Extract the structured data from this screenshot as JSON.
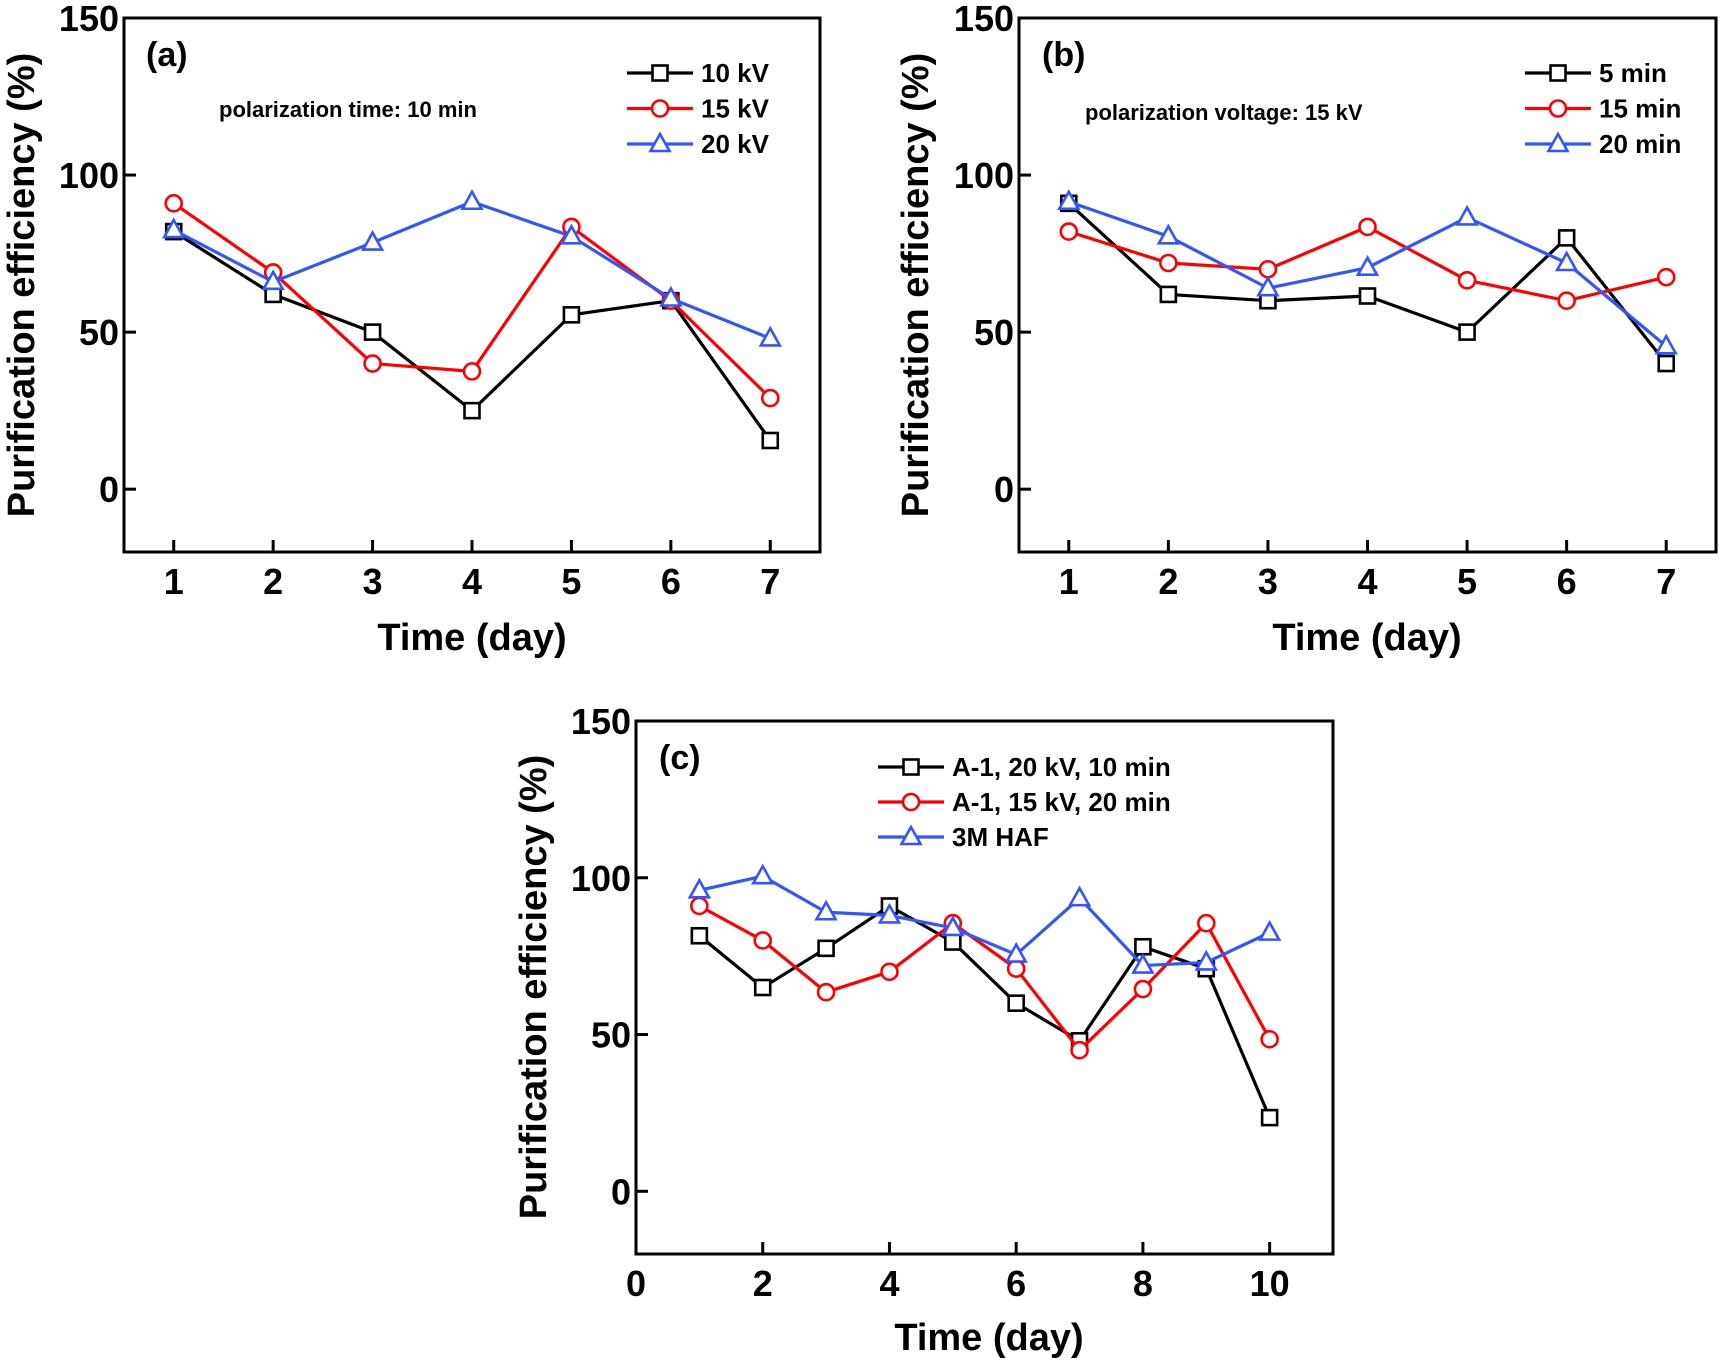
{
  "colors": {
    "black": "#000000",
    "red": "#ff0000",
    "blue": "#3355ff"
  },
  "chart_data": [
    {
      "type": "line",
      "panel_label": "(a)",
      "annotation": "polarization time: 10 min",
      "xlabel": "Time (day)",
      "ylabel": "Purification efficiency (%)",
      "xlim": [
        0.5,
        7.5
      ],
      "ylim": [
        -20,
        150
      ],
      "xticks": [
        1,
        2,
        3,
        4,
        5,
        6,
        7
      ],
      "yticks": [
        0,
        50,
        100,
        150
      ],
      "legend": "top-right",
      "grid": false,
      "x": [
        1,
        2,
        3,
        4,
        5,
        6,
        7
      ],
      "series": [
        {
          "name": "10 kV",
          "color": "#000000",
          "marker": "square",
          "values": [
            82,
            62,
            50,
            25,
            55.5,
            60,
            15.5
          ]
        },
        {
          "name": "15 kV",
          "color": "#ff0000",
          "marker": "circle",
          "values": [
            91,
            69,
            40,
            37.5,
            83.5,
            60,
            29
          ]
        },
        {
          "name": "20 kV",
          "color": "#3355ff",
          "marker": "triangle",
          "values": [
            82.5,
            66,
            78.5,
            91.5,
            80.5,
            60.7,
            48
          ]
        }
      ]
    },
    {
      "type": "line",
      "panel_label": "(b)",
      "annotation": "polarization voltage: 15 kV",
      "xlabel": "Time (day)",
      "ylabel": "Purification efficiency (%)",
      "xlim": [
        0.5,
        7.5
      ],
      "ylim": [
        -20,
        150
      ],
      "xticks": [
        1,
        2,
        3,
        4,
        5,
        6,
        7
      ],
      "yticks": [
        0,
        50,
        100,
        150
      ],
      "legend": "top-right",
      "grid": false,
      "x": [
        1,
        2,
        3,
        4,
        5,
        6,
        7
      ],
      "series": [
        {
          "name": "5 min",
          "color": "#000000",
          "marker": "square",
          "values": [
            91,
            62,
            60,
            61.5,
            50,
            80,
            40
          ]
        },
        {
          "name": "15 min",
          "color": "#ff0000",
          "marker": "circle",
          "values": [
            82,
            72,
            70,
            83.5,
            66.5,
            60,
            67.5
          ]
        },
        {
          "name": "20 min",
          "color": "#3355ff",
          "marker": "triangle",
          "values": [
            91.5,
            80.5,
            64,
            70.5,
            86.5,
            72,
            45.5
          ]
        }
      ]
    },
    {
      "type": "line",
      "panel_label": "(c)",
      "annotation": "",
      "xlabel": "Time (day)",
      "ylabel": "Purification efficiency (%)",
      "xlim": [
        0,
        11
      ],
      "ylim": [
        -20,
        150
      ],
      "xticks": [
        0,
        2,
        4,
        6,
        8,
        10
      ],
      "yticks": [
        0,
        50,
        100,
        150
      ],
      "legend": "top-right",
      "grid": false,
      "x": [
        1,
        2,
        3,
        4,
        5,
        6,
        7,
        8,
        9,
        10
      ],
      "series": [
        {
          "name": "A-1, 20 kV, 10 min",
          "color": "#000000",
          "marker": "square",
          "values": [
            81.5,
            65,
            77.5,
            91,
            79.5,
            60,
            48,
            78,
            71,
            23.5
          ]
        },
        {
          "name": "A-1, 15 kV, 20 min",
          "color": "#ff0000",
          "marker": "circle",
          "values": [
            91,
            80,
            63.5,
            70,
            85.5,
            71,
            45,
            64.5,
            85.5,
            48.5
          ]
        },
        {
          "name": "3M HAF",
          "color": "#3355ff",
          "marker": "triangle",
          "values": [
            96,
            100.5,
            89,
            88,
            84,
            75.5,
            93.5,
            72,
            73,
            82.5
          ]
        }
      ]
    }
  ]
}
